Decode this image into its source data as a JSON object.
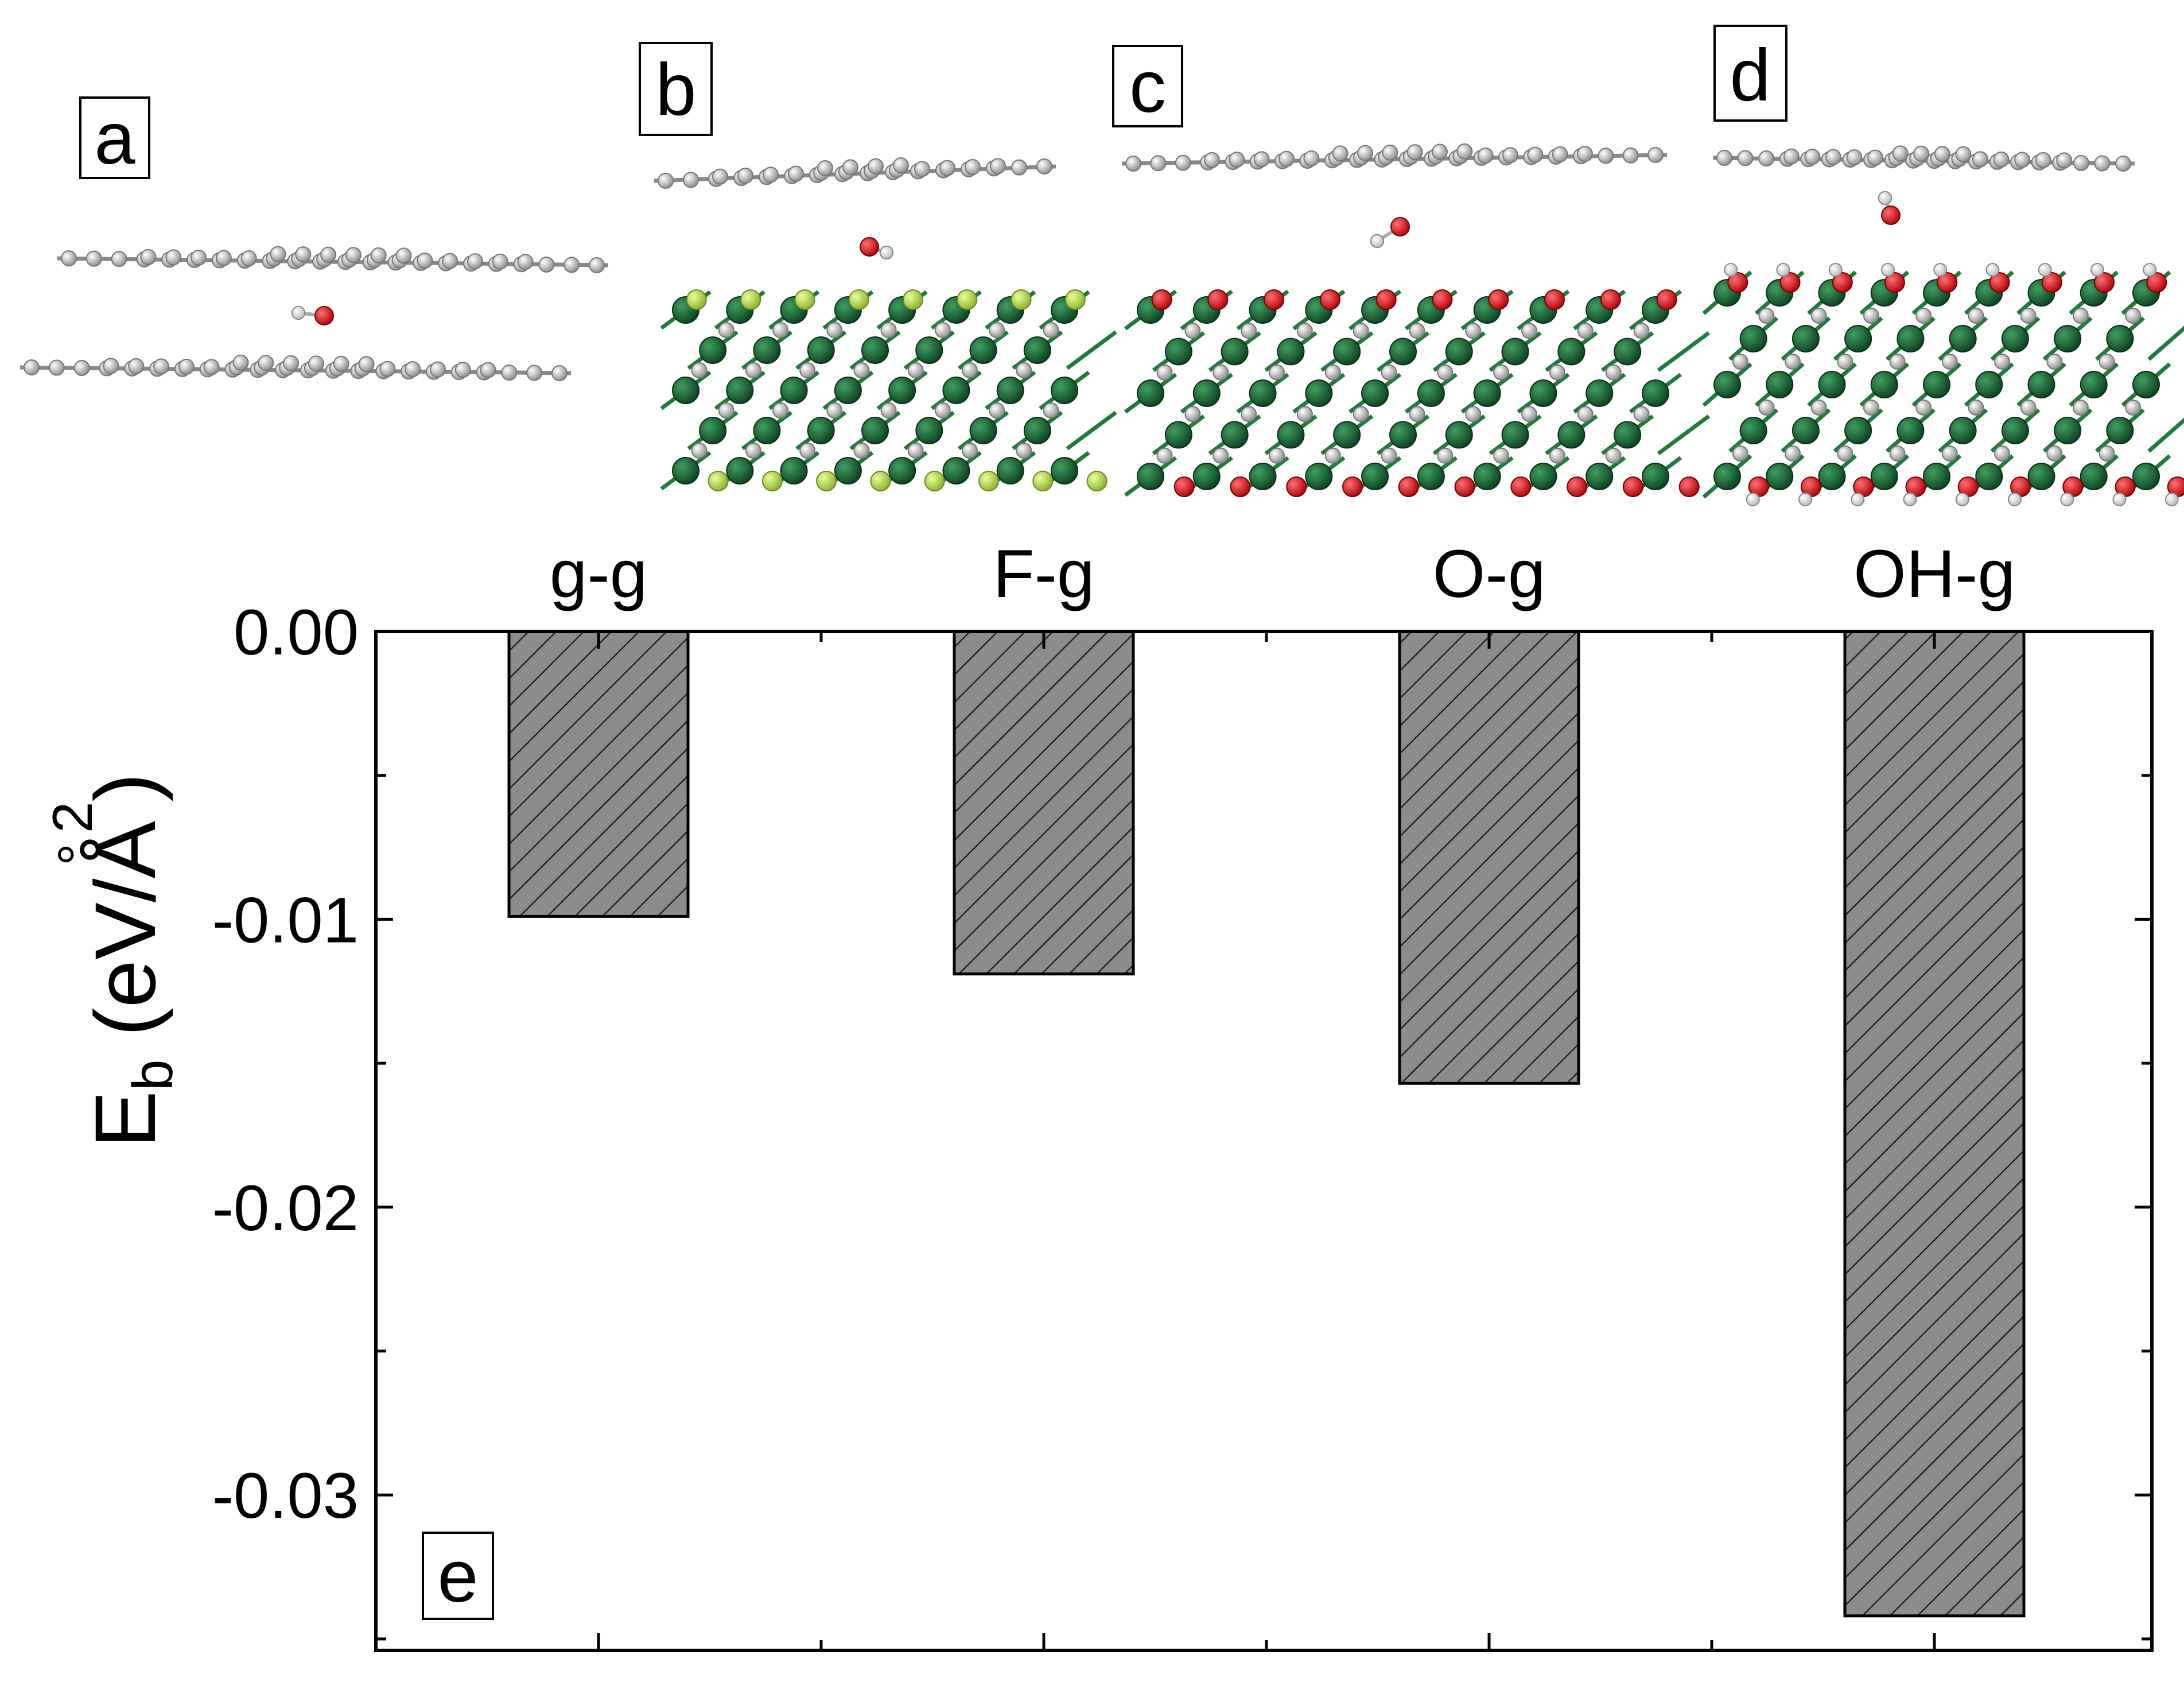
{
  "panels": [
    {
      "letter": "a",
      "name": "g-g"
    },
    {
      "letter": "b",
      "name": "F-g"
    },
    {
      "letter": "c",
      "name": "O-g"
    },
    {
      "letter": "d",
      "name": "OH-g"
    }
  ],
  "chart_data": {
    "type": "bar",
    "panel_letter": "e",
    "categories": [
      "g-g",
      "F-g",
      "O-g",
      "OH-g"
    ],
    "values": [
      -0.0099,
      -0.0119,
      -0.0157,
      -0.0342
    ],
    "ylim": [
      -0.0354,
      0.0
    ],
    "yticks": [
      0.0,
      -0.01,
      -0.02,
      -0.03
    ],
    "ytick_labels": [
      "0.00",
      "-0.01",
      "-0.02",
      "-0.03"
    ],
    "ylabel": {
      "main": "E",
      "sub": "b",
      "unit_open": "(eV/",
      "unit_symbol": "Å",
      "ring": "°",
      "unit_sup": "2",
      "unit_close": ")"
    },
    "xlabel": "",
    "bar_fill": "#8c8c8c",
    "hatch": "diagonal"
  },
  "colors": {
    "carbon": "#c8c8c8",
    "transition_metal": "#1a6b36",
    "oxygen": "#e8141a",
    "fluorine": "#b8e04a",
    "hydrogen": "#f4f4f4"
  }
}
